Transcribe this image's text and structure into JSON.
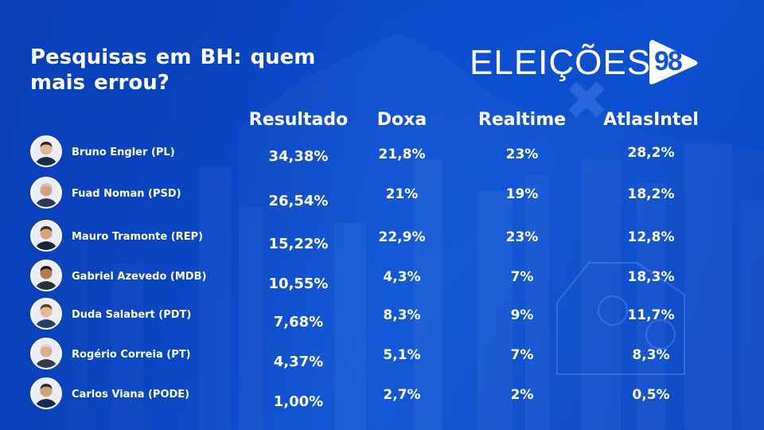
{
  "title": "Pesquisas em BH: quem mais errou?",
  "logo": {
    "text": "ELEIÇÕES",
    "number": "98"
  },
  "colors": {
    "background": "#0b4fd0",
    "text": "#ffffff"
  },
  "chart_data": {
    "type": "table",
    "columns": [
      "Resultado",
      "Doxa",
      "Realtime",
      "AtlasIntel"
    ],
    "rows": [
      {
        "candidate": "Bruno Engler (PL)",
        "values": [
          "34,38%",
          "21,8%",
          "23%",
          "28,2%"
        ]
      },
      {
        "candidate": "Fuad Noman (PSD)",
        "values": [
          "26,54%",
          "21%",
          "19%",
          "18,2%"
        ]
      },
      {
        "candidate": "Mauro Tramonte (REP)",
        "values": [
          "15,22%",
          "22,9%",
          "23%",
          "12,8%"
        ]
      },
      {
        "candidate": "Gabriel Azevedo (MDB)",
        "values": [
          "10,55%",
          "4,3%",
          "7%",
          "18,3%"
        ]
      },
      {
        "candidate": "Duda Salabert (PDT)",
        "values": [
          "7,68%",
          "8,3%",
          "9%",
          "11,7%"
        ]
      },
      {
        "candidate": "Rogério Correia (PT)",
        "values": [
          "4,37%",
          "5,1%",
          "7%",
          "8,3%"
        ]
      },
      {
        "candidate": "Carlos Viana (PODE)",
        "values": [
          "1,00%",
          "2,7%",
          "2%",
          "0,5%"
        ]
      }
    ]
  }
}
